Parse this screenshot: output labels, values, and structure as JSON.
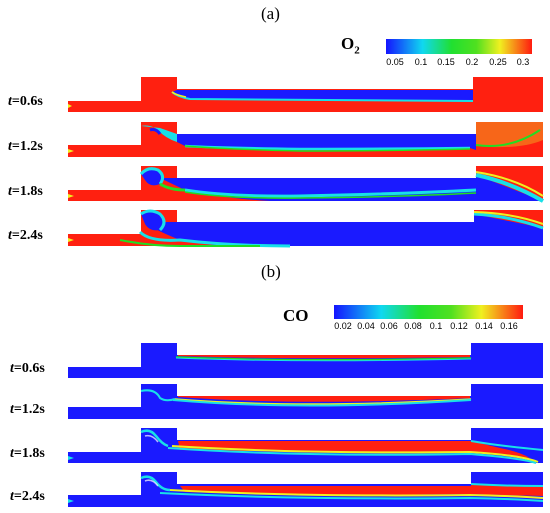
{
  "panels": [
    {
      "id": "a",
      "label": "(a)",
      "species_main": "O",
      "species_sub": "2",
      "colorbar_ticks": [
        "0.05",
        "0.1",
        "0.15",
        "0.2",
        "0.25",
        "0.3"
      ],
      "time_prefix": "t",
      "times": [
        "=0.6s",
        "=1.2s",
        "=1.8s",
        "=2.4s"
      ]
    },
    {
      "id": "b",
      "label": "(b)",
      "species_main": "CO",
      "species_sub": "",
      "colorbar_ticks": [
        "0.02",
        "0.04",
        "0.06",
        "0.08",
        "0.1",
        "0.12",
        "0.14",
        "0.16"
      ],
      "time_prefix": "t",
      "times": [
        "=0.6s",
        "=1.2s",
        "=1.8s",
        "=2.4s"
      ]
    }
  ],
  "colors": {
    "low": "#1a1aff",
    "cyan": "#18e0e8",
    "green": "#22dd22",
    "yellow": "#f0f020",
    "high": "#ff2010"
  }
}
